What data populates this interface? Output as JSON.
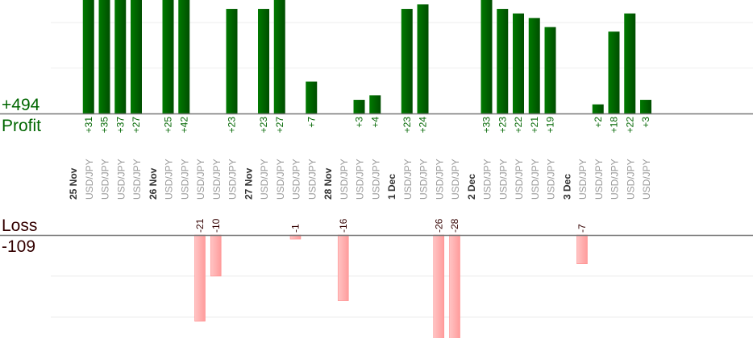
{
  "profit_panel": {
    "total": "+494",
    "label": "Profit"
  },
  "loss_panel": {
    "label": "Loss",
    "total": "-109"
  },
  "colors": {
    "profit": "#006600",
    "loss": "#ffaaaa",
    "profit_text": "#006600",
    "loss_text": "#330000"
  },
  "chart_data": {
    "type": "bar",
    "grid": true,
    "groups": [
      {
        "date": "25 Nov",
        "trades": [
          {
            "symbol": "USD/JPY",
            "value": 31
          },
          {
            "symbol": "USD/JPY",
            "value": 35
          },
          {
            "symbol": "USD/JPY",
            "value": 37
          },
          {
            "symbol": "USD/JPY",
            "value": 27
          }
        ]
      },
      {
        "date": "26 Nov",
        "trades": [
          {
            "symbol": "USD/JPY",
            "value": 25
          },
          {
            "symbol": "USD/JPY",
            "value": 42
          },
          {
            "symbol": "USD/JPY",
            "value": -21
          },
          {
            "symbol": "USD/JPY",
            "value": -10
          },
          {
            "symbol": "USD/JPY",
            "value": 23
          }
        ]
      },
      {
        "date": "27 Nov",
        "trades": [
          {
            "symbol": "USD/JPY",
            "value": 23
          },
          {
            "symbol": "USD/JPY",
            "value": 27
          },
          {
            "symbol": "USD/JPY",
            "value": -1
          },
          {
            "symbol": "USD/JPY",
            "value": 7
          }
        ]
      },
      {
        "date": "28 Nov",
        "trades": [
          {
            "symbol": "USD/JPY",
            "value": -16
          },
          {
            "symbol": "USD/JPY",
            "value": 3
          },
          {
            "symbol": "USD/JPY",
            "value": 4
          }
        ]
      },
      {
        "date": "1 Dec",
        "trades": [
          {
            "symbol": "USD/JPY",
            "value": 23
          },
          {
            "symbol": "USD/JPY",
            "value": 24
          },
          {
            "symbol": "USD/JPY",
            "value": -26
          },
          {
            "symbol": "USD/JPY",
            "value": -28
          }
        ]
      },
      {
        "date": "2 Dec",
        "trades": [
          {
            "symbol": "USD/JPY",
            "value": 33
          },
          {
            "symbol": "USD/JPY",
            "value": 23
          },
          {
            "symbol": "USD/JPY",
            "value": 22
          },
          {
            "symbol": "USD/JPY",
            "value": 21
          },
          {
            "symbol": "USD/JPY",
            "value": 19
          }
        ]
      },
      {
        "date": "3 Dec",
        "trades": [
          {
            "symbol": "USD/JPY",
            "value": -7
          },
          {
            "symbol": "USD/JPY",
            "value": 2
          },
          {
            "symbol": "USD/JPY",
            "value": 18
          },
          {
            "symbol": "USD/JPY",
            "value": 22
          },
          {
            "symbol": "USD/JPY",
            "value": 3
          }
        ]
      }
    ]
  }
}
